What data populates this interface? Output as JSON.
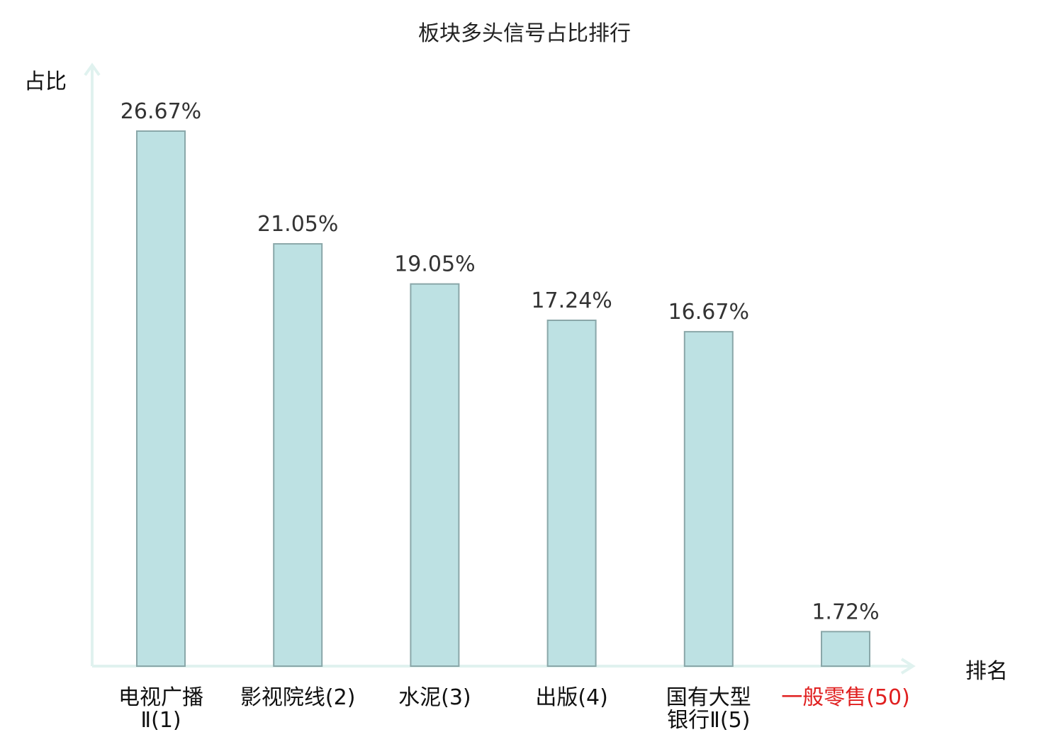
{
  "chart_data": {
    "type": "bar",
    "title": "板块多头信号占比排行",
    "ylabel": "占比",
    "xlabel": "排名",
    "ylim": [
      0,
      30
    ],
    "grid": false,
    "categories": [
      {
        "lines": [
          "电视广播",
          "Ⅱ(1)"
        ],
        "highlight": false
      },
      {
        "lines": [
          "影视院线(2)"
        ],
        "highlight": false
      },
      {
        "lines": [
          "水泥(3)"
        ],
        "highlight": false
      },
      {
        "lines": [
          "出版(4)"
        ],
        "highlight": false
      },
      {
        "lines": [
          "国有大型",
          "银行Ⅱ(5)"
        ],
        "highlight": false
      },
      {
        "lines": [
          "一般零售(50)"
        ],
        "highlight": true
      }
    ],
    "values": [
      26.67,
      21.05,
      19.05,
      17.24,
      16.67,
      1.72
    ],
    "value_labels": [
      "26.67%",
      "21.05%",
      "19.05%",
      "17.24%",
      "16.67%",
      "1.72%"
    ],
    "colors": {
      "bar_fill": "#bde1e3",
      "bar_stroke": "#8aa7a9",
      "axis": "#e0f2ef",
      "label_text": "#333333",
      "category_text": "#111111",
      "highlight_text": "#e02020"
    }
  }
}
